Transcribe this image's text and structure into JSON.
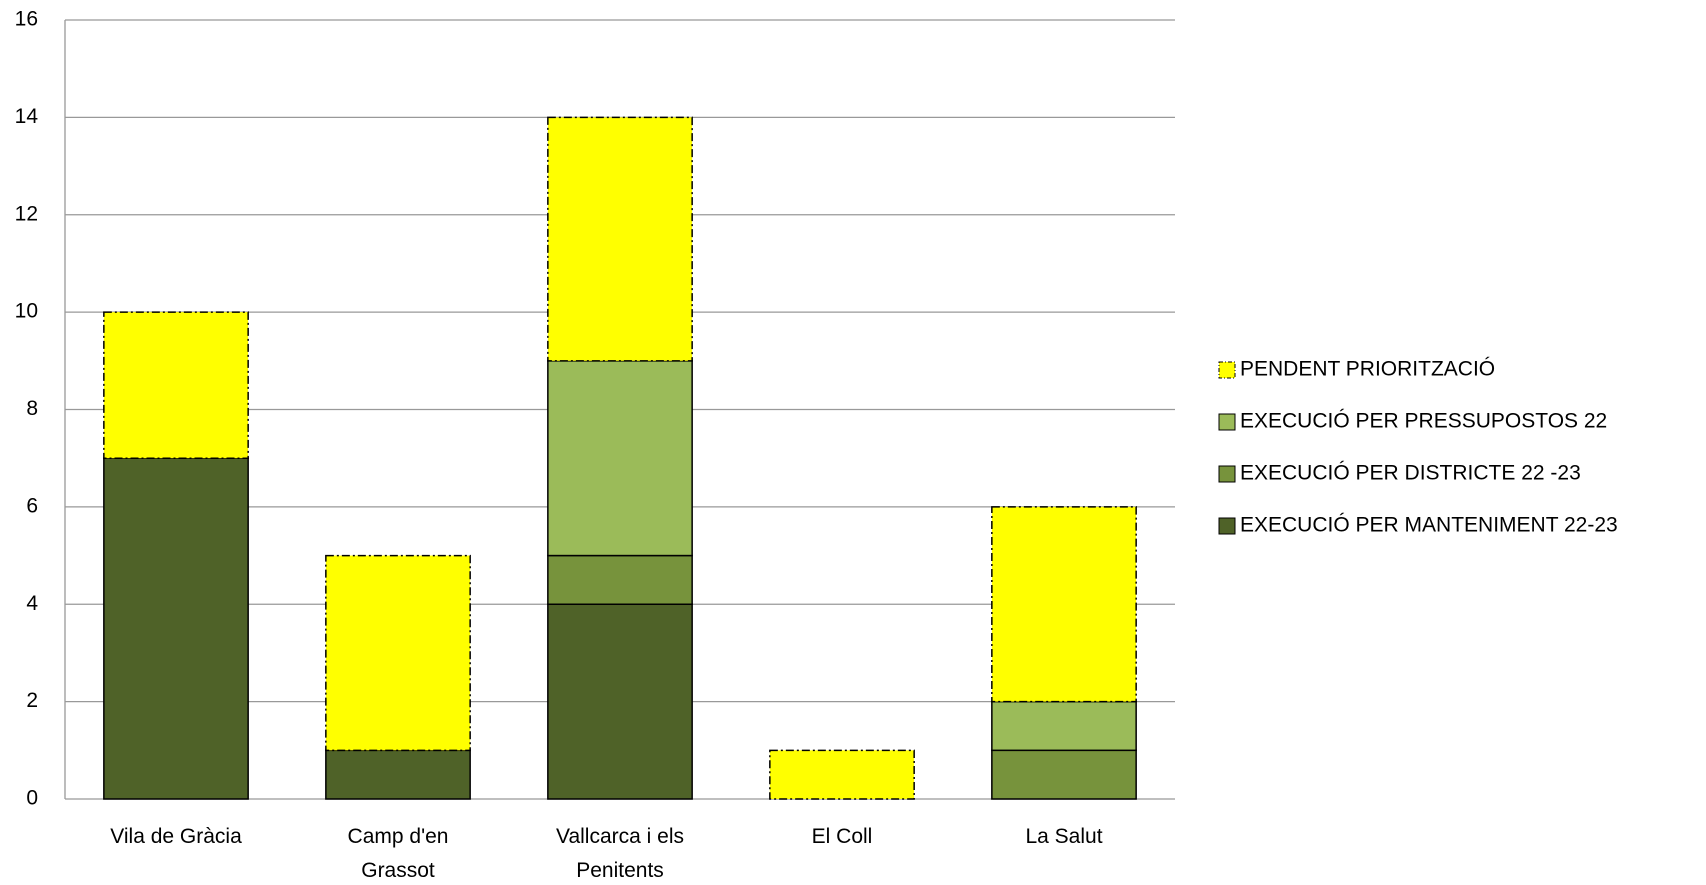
{
  "chart_data": {
    "type": "stacked-bar",
    "categories": [
      "Vila de Gràcia",
      "Camp d'en Grassot",
      "Vallcarca i els Penitents",
      "El Coll",
      "La Salut"
    ],
    "series": [
      {
        "name": "EXECUCIÓ PER MANTENIMENT 22-23",
        "color": "#4f6228",
        "values": [
          7,
          1,
          4,
          0,
          0
        ]
      },
      {
        "name": "EXECUCIÓ PER DISTRICTE 22 -23",
        "color": "#77933c",
        "values": [
          0,
          0,
          1,
          0,
          1
        ]
      },
      {
        "name": "EXECUCIÓ PER PRESSUPOSTOS 22",
        "color": "#9bbb59",
        "values": [
          0,
          0,
          4,
          0,
          1
        ]
      },
      {
        "name": "PENDENT PRIORITZACIÓ",
        "color": "#ffff00",
        "values": [
          3,
          4,
          5,
          1,
          4
        ]
      }
    ],
    "ylim": [
      0,
      16
    ],
    "yticks": [
      0,
      2,
      4,
      6,
      8,
      10,
      12,
      14,
      16
    ],
    "grid": true,
    "legend": "right"
  }
}
